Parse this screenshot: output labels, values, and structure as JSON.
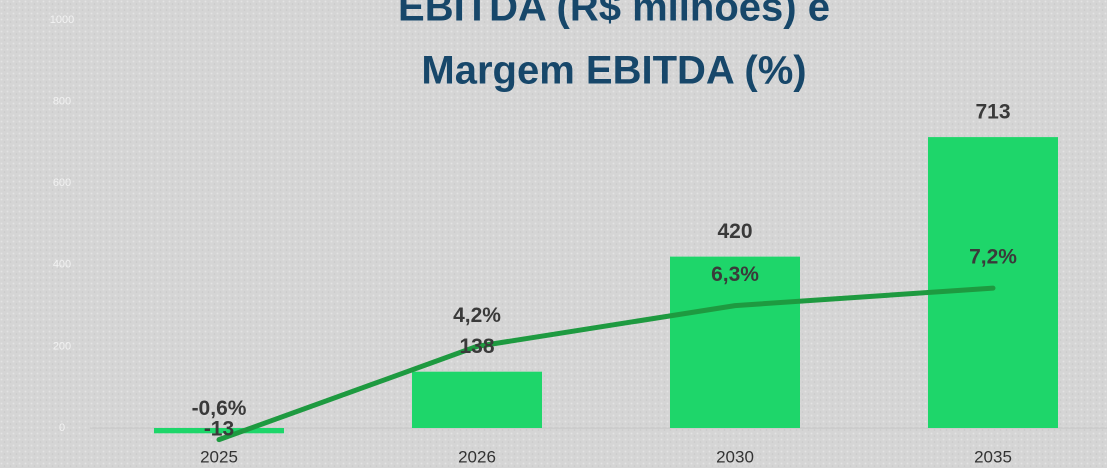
{
  "chart_data": {
    "type": "bar_line",
    "title": [
      "EBITDA (R$ milhões) e",
      "Margem EBITDA (%)"
    ],
    "categories": [
      "2025",
      "2026",
      "2030",
      "2035"
    ],
    "series": [
      {
        "name": "EBITDA (R$ milhões)",
        "color": "#1ed66a",
        "values": [
          -13,
          138,
          420,
          713
        ]
      },
      {
        "name": "Margem EBITDA (%)",
        "color": "#1e9a40",
        "axis": "y2",
        "values": [
          -0.6,
          4.2,
          6.3,
          7.2
        ],
        "value_labels": [
          "-0,6%",
          "4,2%",
          "6,3%",
          "7,2%"
        ]
      }
    ],
    "ylim": [
      0,
      1000
    ],
    "yticks": [
      0,
      200,
      400,
      600,
      800,
      1000
    ],
    "y2lim": [
      0,
      21
    ]
  }
}
